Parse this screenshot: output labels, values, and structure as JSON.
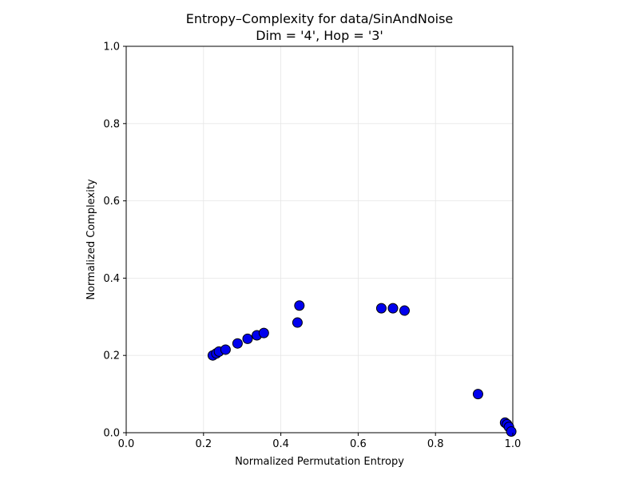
{
  "chart_data": {
    "type": "scatter",
    "title_line1": "Entropy–Complexity for data/SinAndNoise",
    "title_line2": "Dim = '4', Hop = '3'",
    "xlabel": "Normalized Permutation Entropy",
    "ylabel": "Normalized Complexity",
    "xlim": [
      0.0,
      1.0
    ],
    "ylim": [
      0.0,
      1.0
    ],
    "xticks": [
      "0.0",
      "0.2",
      "0.4",
      "0.6",
      "0.8",
      "1.0"
    ],
    "yticks": [
      "0.0",
      "0.2",
      "0.4",
      "0.6",
      "0.8",
      "1.0"
    ],
    "grid": true,
    "marker_color": "#0000ee",
    "marker_edge": "#000000",
    "x": [
      0.224,
      0.233,
      0.24,
      0.257,
      0.288,
      0.314,
      0.338,
      0.356,
      0.443,
      0.448,
      0.66,
      0.69,
      0.72,
      0.91,
      0.98,
      0.985,
      0.99,
      0.996
    ],
    "y": [
      0.2,
      0.205,
      0.21,
      0.215,
      0.231,
      0.243,
      0.252,
      0.258,
      0.285,
      0.329,
      0.322,
      0.322,
      0.316,
      0.1,
      0.026,
      0.022,
      0.015,
      0.003
    ]
  }
}
